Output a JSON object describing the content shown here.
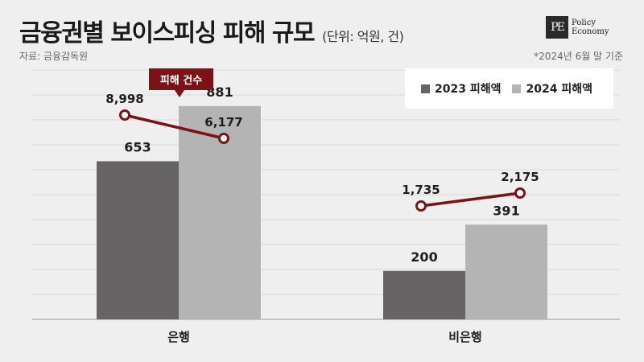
{
  "header": {
    "title": "금융권별 보이스피싱 피해 규모",
    "unit": "(단위: 억원, 건)",
    "source": "자료: 금융감독원",
    "note": "*2024년 6월 말 기준"
  },
  "logo": {
    "mark": "PE",
    "line1": "Policy",
    "line2": "Economy"
  },
  "colors": {
    "s2023": "#666465",
    "s2024": "#b5b4b5",
    "line": "#7d1216",
    "background": "#efefef"
  },
  "chart_data": {
    "type": "bar",
    "categories": [
      "은행",
      "비은행"
    ],
    "series": [
      {
        "name": "2023 피해액",
        "values": [
          653,
          200
        ]
      },
      {
        "name": "2024 피해액",
        "values": [
          881,
          391
        ]
      }
    ],
    "value_labels": [
      [
        "653",
        "200"
      ],
      [
        "881",
        "391"
      ]
    ],
    "overlay": {
      "type": "line",
      "name": "피해 건수",
      "groups": [
        {
          "category": "은행",
          "values": [
            8998,
            6177
          ],
          "labels": [
            "8,998",
            "6,177"
          ]
        },
        {
          "category": "비은행",
          "values": [
            1735,
            2175
          ],
          "labels": [
            "1,735",
            "2,175"
          ]
        }
      ]
    },
    "ylim": [
      0,
      1000
    ],
    "grid": true,
    "legend": "top-right"
  }
}
